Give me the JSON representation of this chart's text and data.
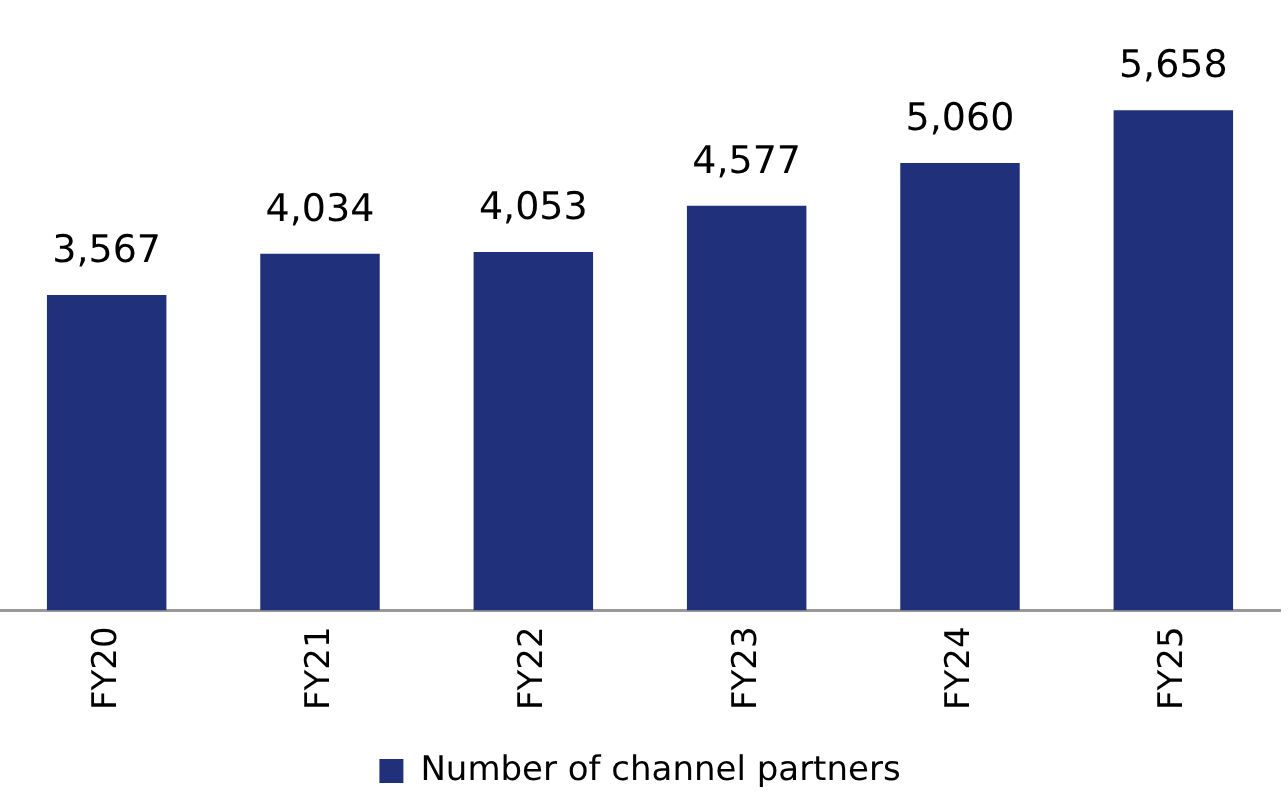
{
  "chart_data": {
    "type": "bar",
    "categories": [
      "FY20",
      "FY21",
      "FY22",
      "FY23",
      "FY24",
      "FY25"
    ],
    "series": [
      {
        "name": "Number of channel partners",
        "color": "#20307a",
        "values": [
          3567,
          4034,
          4053,
          4577,
          5060,
          5658
        ],
        "value_labels": [
          "3,567",
          "4,034",
          "4,053",
          "4,577",
          "5,060",
          "5,658"
        ]
      }
    ],
    "legend": "bottom",
    "grid": false,
    "tick_labels": "x"
  }
}
